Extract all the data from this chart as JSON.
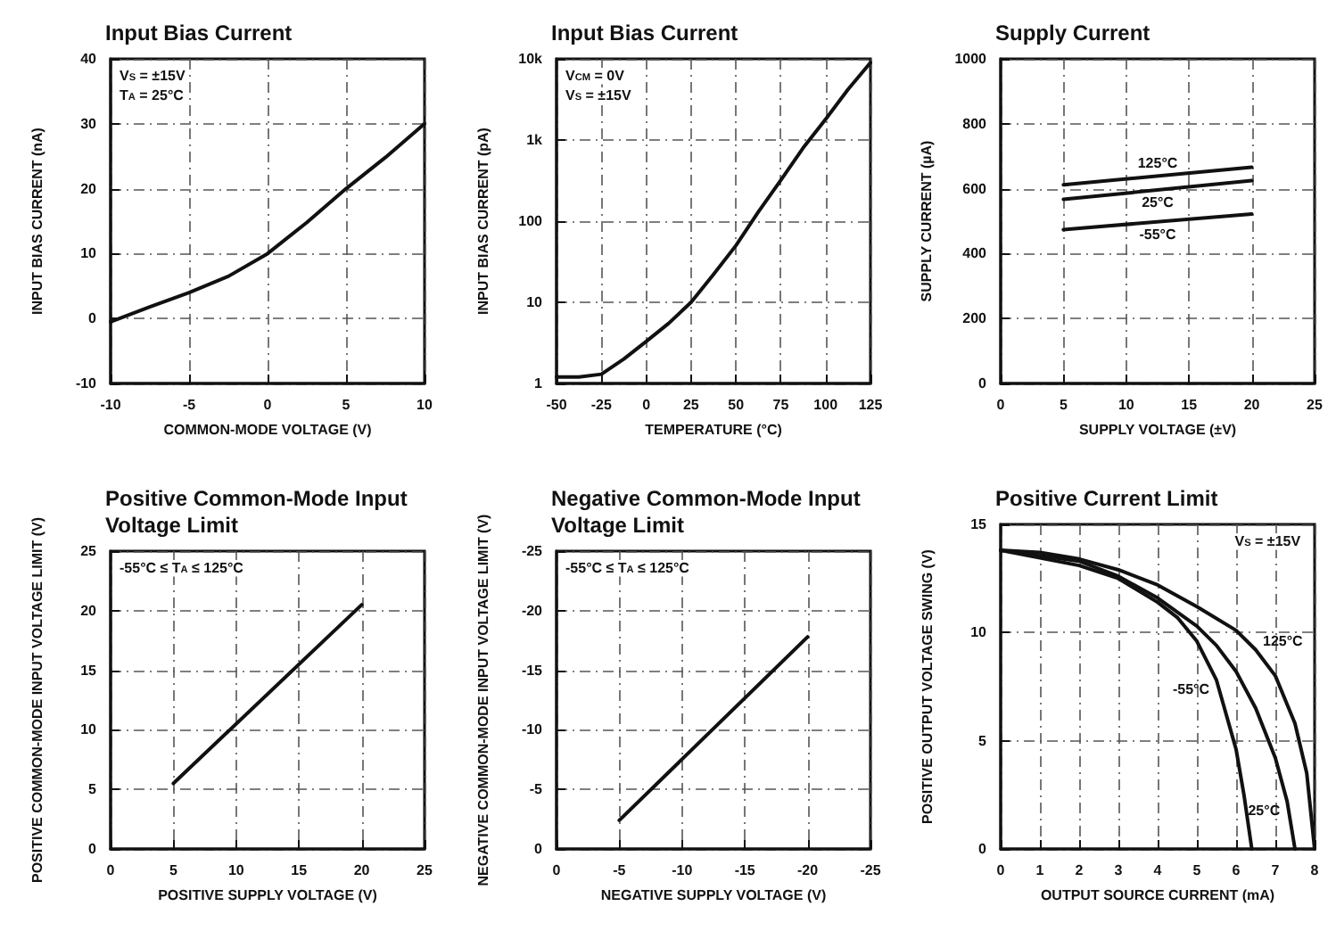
{
  "chart_data": [
    {
      "type": "line",
      "title": "Input Bias Current",
      "xlabel": "COMMON-MODE VOLTAGE (V)",
      "ylabel": "INPUT BIAS CURRENT (nA)",
      "annotations": [
        "V$_{S}$ = ±15V",
        "T$_{A}$ = 25°C"
      ],
      "x": [
        -10,
        -7.5,
        -5,
        -2.5,
        0,
        2.5,
        5,
        7.5,
        10
      ],
      "series": [
        {
          "color": "#111111",
          "values": [
            -0.5,
            1.8,
            4,
            6.5,
            10,
            14.8,
            20,
            24.8,
            30
          ]
        }
      ],
      "xlim": [
        -10,
        10
      ],
      "xticks": [
        -10,
        -5,
        0,
        5,
        10
      ],
      "ylim": [
        -10,
        40
      ],
      "yticks": [
        -10,
        0,
        10,
        20,
        30,
        40
      ],
      "grid": true,
      "marker": "none"
    },
    {
      "type": "line",
      "title": "Input Bias Current",
      "xlabel": "TEMPERATURE (°C)",
      "ylabel": "INPUT BIAS CURRENT (pA)",
      "annotations": [
        "V$_{CM}$ = 0V",
        "V$_{S}$ = ±15V"
      ],
      "x": [
        -50,
        -37.5,
        -25,
        -12.5,
        0,
        12.5,
        25,
        37.5,
        50,
        62.5,
        75,
        87.5,
        100,
        112.5,
        125
      ],
      "series": [
        {
          "color": "#111111",
          "values": [
            1.2,
            1.2,
            1.3,
            2,
            3.3,
            5.5,
            10,
            22,
            50,
            130,
            320,
            800,
            1800,
            4200,
            9000
          ]
        }
      ],
      "xlim": [
        -50,
        125
      ],
      "xticks": [
        -50,
        -25,
        0,
        25,
        50,
        75,
        100,
        125
      ],
      "log": "y",
      "ylim": [
        1,
        10000
      ],
      "yticks": [
        1,
        10,
        100,
        {
          "value": 1000,
          "label": "1k"
        },
        {
          "value": 10000,
          "label": "10k"
        }
      ],
      "grid": true,
      "marker": "none"
    },
    {
      "type": "line",
      "title": "Supply Current",
      "xlabel": "SUPPLY VOLTAGE (±V)",
      "ylabel": "SUPPLY CURRENT (µA)",
      "annotations": [
        {
          "text": "125°C",
          "x": 12.5,
          "y": 639
        },
        {
          "text": "25°C",
          "x": 12.5,
          "y": 596
        },
        {
          "text": "-55°C",
          "x": 12.5,
          "y": 498
        }
      ],
      "x": [
        5,
        20
      ],
      "series": [
        {
          "color": "#111111",
          "values": [
            612,
            666
          ]
        },
        {
          "color": "#111111",
          "values": [
            567,
            625
          ]
        },
        {
          "color": "#111111",
          "values": [
            474,
            522
          ]
        }
      ],
      "xlim": [
        0,
        25
      ],
      "xticks": [
        0,
        5,
        10,
        15,
        20,
        25
      ],
      "ylim": [
        0,
        1000
      ],
      "yticks": [
        0,
        200,
        400,
        600,
        800,
        1000
      ],
      "grid": true,
      "marker": "none"
    },
    {
      "type": "line",
      "title": "Positive Common-Mode Input Voltage Limit",
      "xlabel": "POSITIVE SUPPLY VOLTAGE (V)",
      "ylabel": "POSITIVE COMMON-MODE INPUT VOLTAGE LIMIT (V)",
      "annotations": [
        "-55°C ≤ T$_{A}$ ≤ 125°C"
      ],
      "x": [
        5,
        20
      ],
      "series": [
        {
          "color": "#111111",
          "values": [
            5.5,
            20.5
          ]
        }
      ],
      "xlim": [
        0,
        25
      ],
      "xticks": [
        0,
        5,
        10,
        15,
        20,
        25
      ],
      "ylim": [
        0,
        25
      ],
      "yticks": [
        0,
        5,
        10,
        15,
        20,
        25
      ],
      "grid": true,
      "marker": "none"
    },
    {
      "type": "line",
      "title": "Negative Common-Mode Input Voltage Limit",
      "xlabel": "NEGATIVE SUPPLY VOLTAGE (V)",
      "ylabel": "NEGATIVE COMMON-MODE INPUT VOLTAGE LIMIT (V)",
      "annotations": [
        "-55°C ≤ T$_{A}$ ≤ 125°C"
      ],
      "x": [
        -5,
        -20
      ],
      "series": [
        {
          "color": "#111111",
          "values": [
            -2.4,
            -17.8
          ]
        }
      ],
      "xlim": [
        0,
        -25
      ],
      "xticks": [
        0,
        -5,
        -10,
        -15,
        -20,
        -25
      ],
      "ylim": [
        0,
        -25
      ],
      "yticks": [
        0,
        -5,
        -10,
        -15,
        -20,
        -25
      ],
      "grid": true,
      "marker": "none"
    },
    {
      "type": "line",
      "title": "Positive Current Limit",
      "xlabel": "OUTPUT SOURCE CURRENT (mA)",
      "ylabel": "POSITIVE OUTPUT VOLTAGE SWING (V)",
      "annotations": [
        "V$_{S}$ = ±15V",
        {
          "text": "125°C",
          "x": 6.5,
          "y": 9.2
        },
        {
          "text": "25°C",
          "x": 7.3,
          "y": 2.2
        },
        {
          "text": "-55°C",
          "x": 5.5,
          "y": 7.8
        }
      ],
      "series": [
        {
          "color": "#111111",
          "x": [
            0,
            1,
            2,
            3,
            4,
            5,
            6,
            6.5,
            7,
            7.5,
            7.8,
            8
          ],
          "values": [
            13.8,
            13.7,
            13.4,
            12.9,
            12.2,
            11.2,
            10.1,
            9.2,
            8,
            5.8,
            3.5,
            0
          ]
        },
        {
          "color": "#111111",
          "x": [
            0,
            2,
            3,
            4,
            5,
            5.5,
            6,
            6.5,
            7,
            7.3,
            7.5
          ],
          "values": [
            13.8,
            13.3,
            12.6,
            11.6,
            10.3,
            9.4,
            8.2,
            6.5,
            4.2,
            2.2,
            0
          ]
        },
        {
          "color": "#111111",
          "x": [
            0,
            2,
            3,
            4,
            4.5,
            5,
            5.5,
            6,
            6.2,
            6.4
          ],
          "values": [
            13.8,
            13.1,
            12.5,
            11.4,
            10.7,
            9.6,
            7.8,
            4.6,
            2.5,
            0
          ]
        }
      ],
      "xlim": [
        0,
        8
      ],
      "xticks": [
        0,
        1,
        2,
        3,
        4,
        5,
        6,
        7,
        8
      ],
      "ylim": [
        0,
        15
      ],
      "yticks": [
        0,
        5,
        10,
        15
      ],
      "grid": true,
      "marker": "none"
    }
  ]
}
